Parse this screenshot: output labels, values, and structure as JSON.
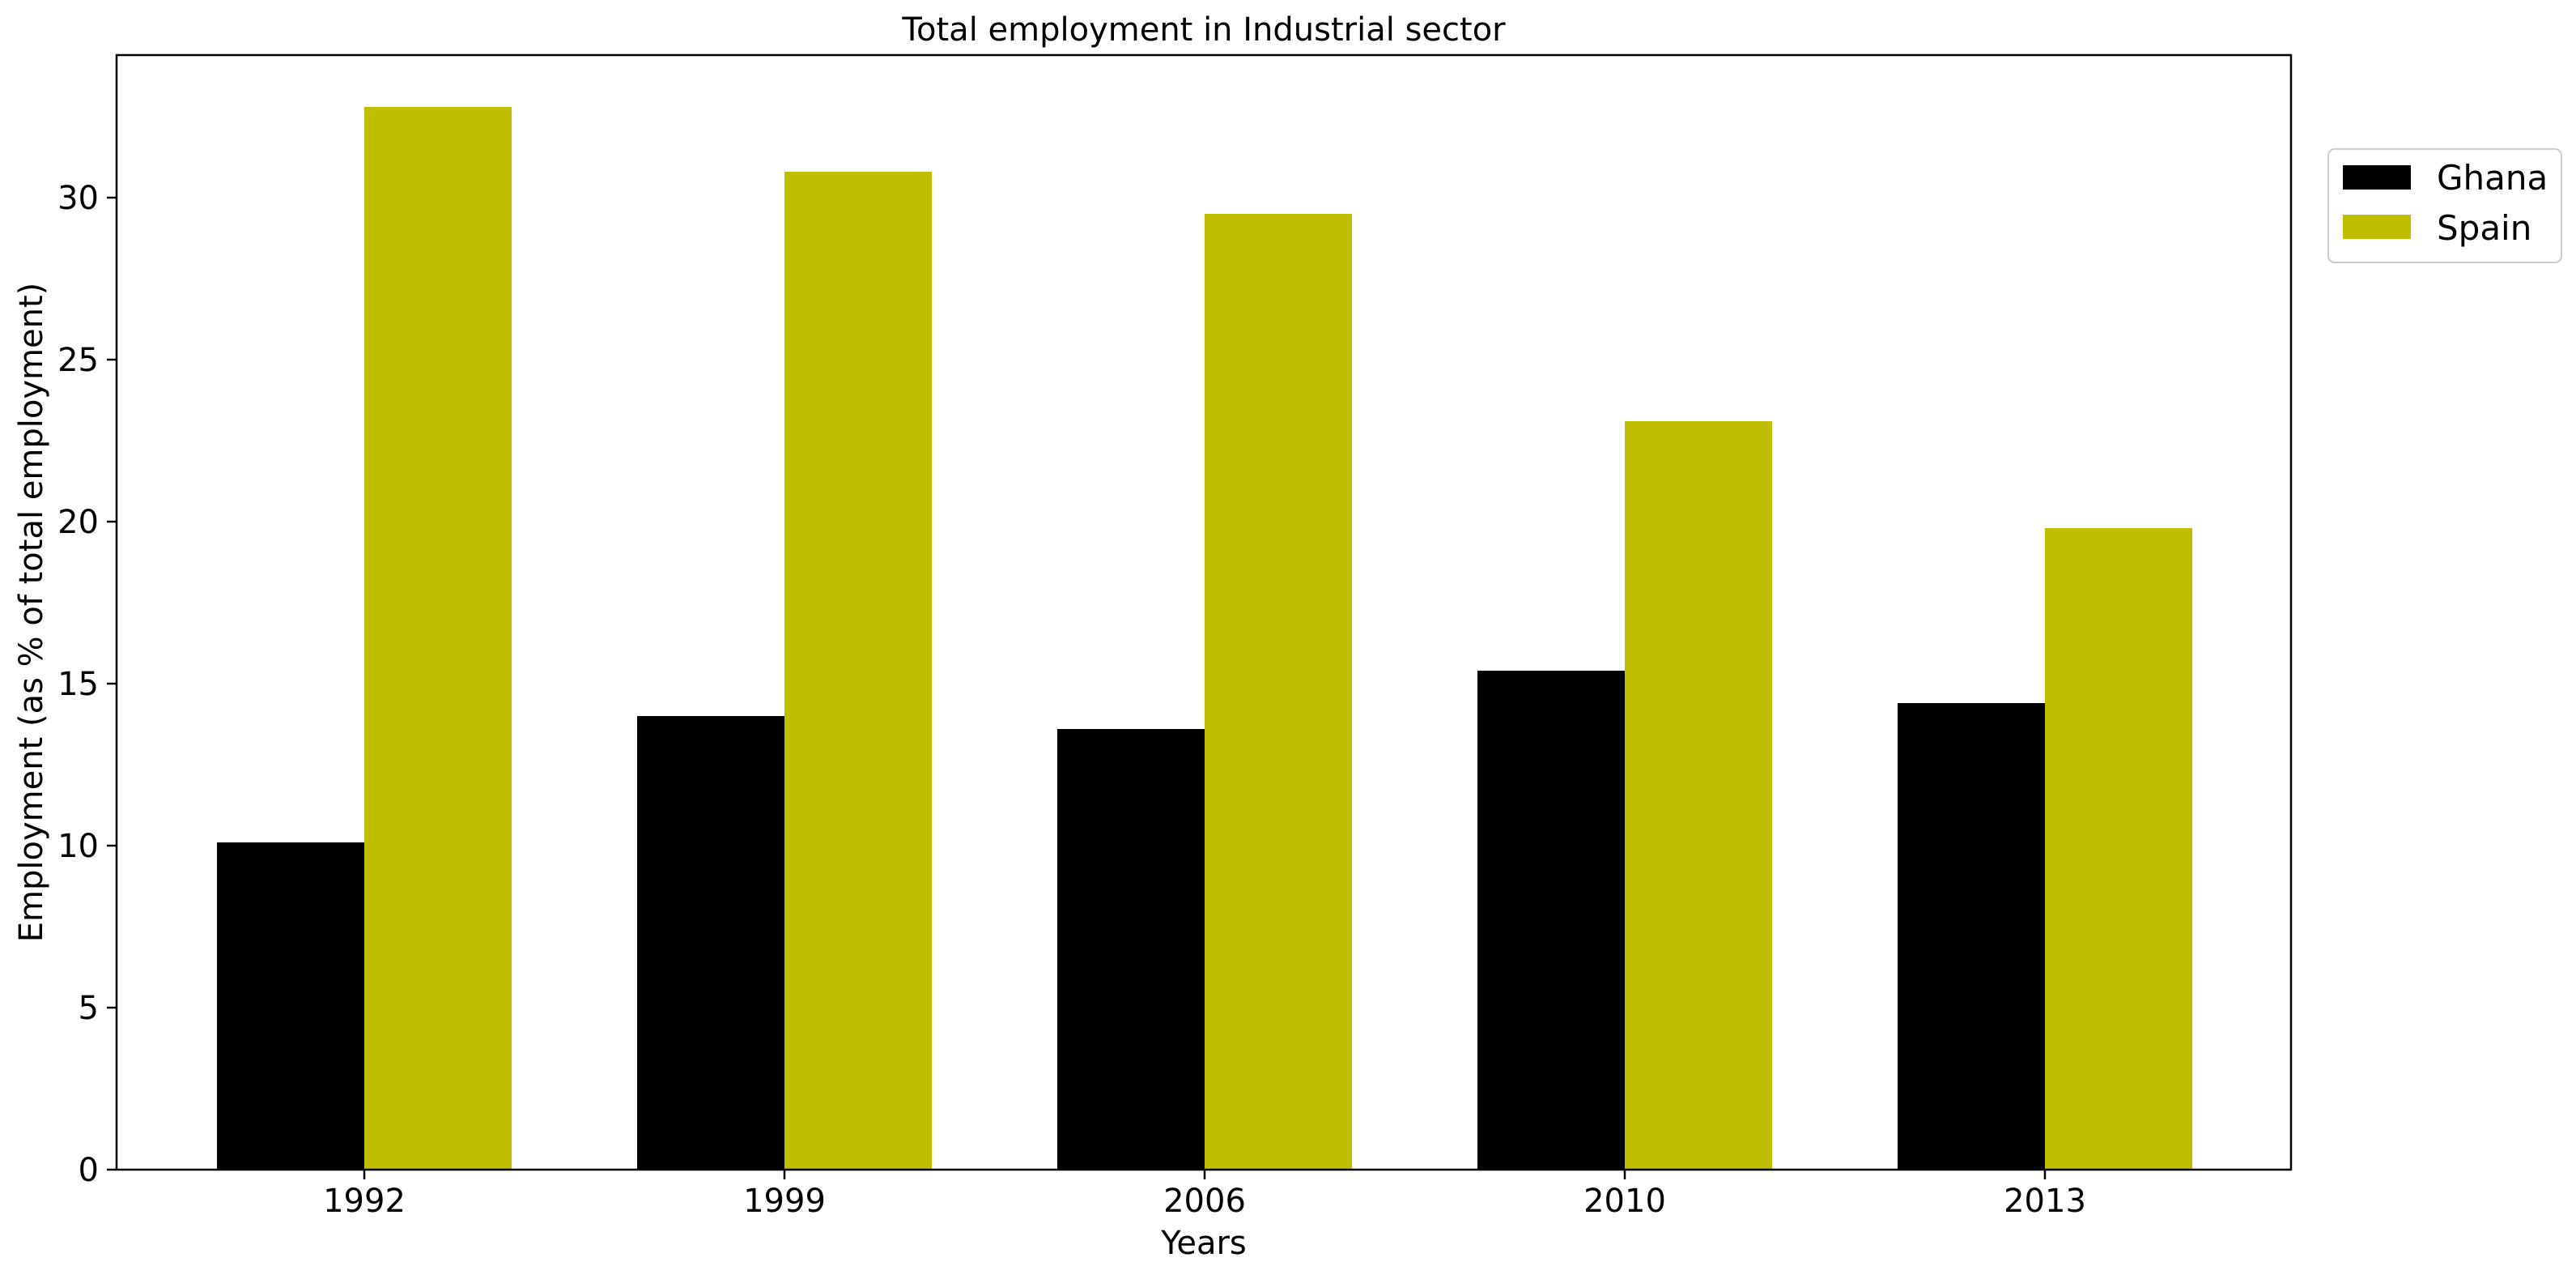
{
  "chart_data": {
    "type": "bar",
    "title": "Total employment in Industrial sector",
    "xlabel": "Years",
    "ylabel": "Employment (as % of total employment)",
    "categories": [
      "1992",
      "1999",
      "2006",
      "2010",
      "2013"
    ],
    "series": [
      {
        "name": "Ghana",
        "color": "#000000",
        "values": [
          10.1,
          14.0,
          13.6,
          15.4,
          14.4
        ]
      },
      {
        "name": "Spain",
        "color": "#bfbf00",
        "values": [
          32.8,
          30.8,
          29.5,
          23.1,
          19.8
        ]
      }
    ],
    "ylim": [
      0,
      34.4
    ],
    "yticks": [
      0,
      5,
      10,
      15,
      20,
      25,
      30
    ],
    "grid": false,
    "legend": {
      "placement": "right-outside-top"
    }
  }
}
